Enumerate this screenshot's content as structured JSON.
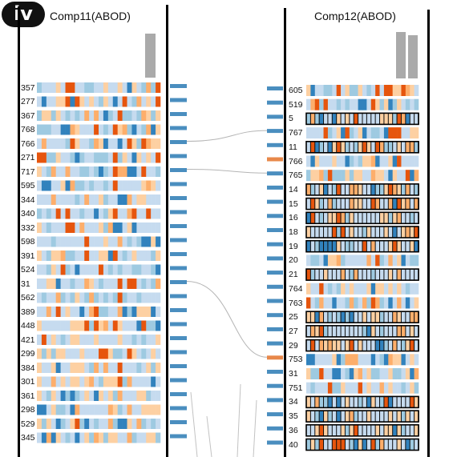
{
  "panel_label": "iv",
  "left": {
    "title": "Comp11(ABOD)",
    "rows": [
      "357",
      "277",
      "367",
      "768",
      "766",
      "271",
      "717",
      "595",
      "344",
      "340",
      "332",
      "598",
      "391",
      "524",
      "31",
      "562",
      "389",
      "448",
      "421",
      "299",
      "384",
      "301",
      "361",
      "298",
      "529",
      "345"
    ]
  },
  "right": {
    "title": "Comp12(ABOD)",
    "rows": [
      {
        "label": "605",
        "boxed": false
      },
      {
        "label": "519",
        "boxed": false
      },
      {
        "label": "5",
        "boxed": true
      },
      {
        "label": "767",
        "boxed": false
      },
      {
        "label": "11",
        "boxed": true
      },
      {
        "label": "766",
        "boxed": false
      },
      {
        "label": "765",
        "boxed": false
      },
      {
        "label": "14",
        "boxed": true
      },
      {
        "label": "15",
        "boxed": true
      },
      {
        "label": "16",
        "boxed": true
      },
      {
        "label": "18",
        "boxed": true
      },
      {
        "label": "19",
        "boxed": true
      },
      {
        "label": "20",
        "boxed": false
      },
      {
        "label": "21",
        "boxed": true
      },
      {
        "label": "764",
        "boxed": false
      },
      {
        "label": "763",
        "boxed": false
      },
      {
        "label": "25",
        "boxed": true
      },
      {
        "label": "27",
        "boxed": true
      },
      {
        "label": "29",
        "boxed": true
      },
      {
        "label": "753",
        "boxed": false
      },
      {
        "label": "31",
        "boxed": false
      },
      {
        "label": "751",
        "boxed": false
      },
      {
        "label": "34",
        "boxed": true
      },
      {
        "label": "35",
        "boxed": true
      },
      {
        "label": "36",
        "boxed": true
      },
      {
        "label": "40",
        "boxed": true
      }
    ]
  },
  "links": [
    {
      "from": "766",
      "to": "767"
    },
    {
      "from": "717",
      "to": "765"
    },
    {
      "from": "31",
      "to": "753"
    }
  ],
  "colors": {
    "blue_light": "#c6dbef",
    "blue_mid": "#9ecae1",
    "blue_dark": "#3182bd",
    "orange_light": "#fdd0a2",
    "orange_mid": "#fdae6b",
    "orange_dark": "#e6550d",
    "marker_blue": "#4a8ebf",
    "marker_orange": "#e8884a"
  }
}
